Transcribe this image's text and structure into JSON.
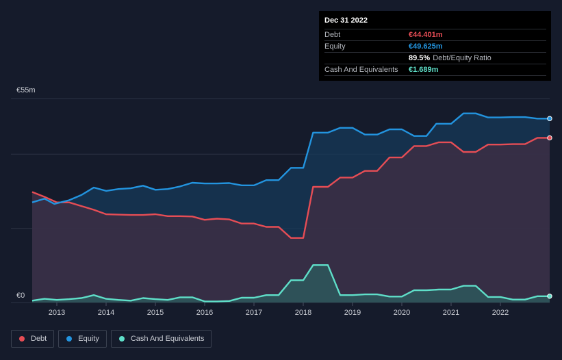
{
  "chart_data": {
    "type": "area",
    "y_label_top": "€55m",
    "y_label_bottom": "€0",
    "ylim": [
      0,
      55
    ],
    "xlim": [
      2012.5,
      2023.0
    ],
    "x_ticks": [
      {
        "value": 2013,
        "label": "2013"
      },
      {
        "value": 2014,
        "label": "2014"
      },
      {
        "value": 2015,
        "label": "2015"
      },
      {
        "value": 2016,
        "label": "2016"
      },
      {
        "value": 2017,
        "label": "2017"
      },
      {
        "value": 2018,
        "label": "2018"
      },
      {
        "value": 2019,
        "label": "2019"
      },
      {
        "value": 2020,
        "label": "2020"
      },
      {
        "value": 2021,
        "label": "2021"
      },
      {
        "value": 2022,
        "label": "2022"
      }
    ],
    "series": [
      {
        "name": "Equity",
        "key": "equity",
        "color": "#2394df",
        "points": [
          [
            2012.5,
            27.0
          ],
          [
            2012.75,
            28.0
          ],
          [
            2012.95,
            26.6
          ],
          [
            2013.25,
            27.6
          ],
          [
            2013.5,
            29.0
          ],
          [
            2013.75,
            31.0
          ],
          [
            2014.0,
            30.1
          ],
          [
            2014.25,
            30.6
          ],
          [
            2014.5,
            30.8
          ],
          [
            2014.75,
            31.5
          ],
          [
            2015.0,
            30.4
          ],
          [
            2015.25,
            30.6
          ],
          [
            2015.5,
            31.3
          ],
          [
            2015.75,
            32.3
          ],
          [
            2016.0,
            32.1
          ],
          [
            2016.25,
            32.1
          ],
          [
            2016.5,
            32.2
          ],
          [
            2016.75,
            31.6
          ],
          [
            2017.0,
            31.6
          ],
          [
            2017.25,
            33.0
          ],
          [
            2017.5,
            33.0
          ],
          [
            2017.75,
            36.3
          ],
          [
            2018.0,
            36.3
          ],
          [
            2018.2,
            45.8
          ],
          [
            2018.5,
            45.8
          ],
          [
            2018.75,
            47.1
          ],
          [
            2019.0,
            47.1
          ],
          [
            2019.25,
            45.3
          ],
          [
            2019.5,
            45.3
          ],
          [
            2019.75,
            46.7
          ],
          [
            2020.0,
            46.7
          ],
          [
            2020.25,
            44.9
          ],
          [
            2020.5,
            44.9
          ],
          [
            2020.7,
            48.2
          ],
          [
            2021.0,
            48.2
          ],
          [
            2021.25,
            51.0
          ],
          [
            2021.5,
            51.0
          ],
          [
            2021.75,
            49.9
          ],
          [
            2022.0,
            49.9
          ],
          [
            2022.25,
            50.0
          ],
          [
            2022.5,
            50.0
          ],
          [
            2022.75,
            49.6
          ],
          [
            2023.0,
            49.6
          ]
        ]
      },
      {
        "name": "Debt",
        "key": "debt",
        "color": "#e64d55",
        "points": [
          [
            2012.5,
            29.8
          ],
          [
            2012.75,
            28.5
          ],
          [
            2013.0,
            27.0
          ],
          [
            2013.25,
            27.0
          ],
          [
            2013.5,
            26.0
          ],
          [
            2013.75,
            25.0
          ],
          [
            2014.0,
            23.8
          ],
          [
            2014.25,
            23.7
          ],
          [
            2014.5,
            23.6
          ],
          [
            2014.75,
            23.6
          ],
          [
            2015.0,
            23.8
          ],
          [
            2015.25,
            23.3
          ],
          [
            2015.5,
            23.3
          ],
          [
            2015.75,
            23.2
          ],
          [
            2016.0,
            22.3
          ],
          [
            2016.25,
            22.6
          ],
          [
            2016.5,
            22.4
          ],
          [
            2016.75,
            21.3
          ],
          [
            2017.0,
            21.3
          ],
          [
            2017.25,
            20.4
          ],
          [
            2017.5,
            20.4
          ],
          [
            2017.75,
            17.4
          ],
          [
            2018.0,
            17.4
          ],
          [
            2018.2,
            31.2
          ],
          [
            2018.5,
            31.2
          ],
          [
            2018.75,
            33.7
          ],
          [
            2019.0,
            33.7
          ],
          [
            2019.25,
            35.5
          ],
          [
            2019.5,
            35.5
          ],
          [
            2019.75,
            39.1
          ],
          [
            2020.0,
            39.1
          ],
          [
            2020.25,
            42.2
          ],
          [
            2020.5,
            42.2
          ],
          [
            2020.75,
            43.2
          ],
          [
            2021.0,
            43.2
          ],
          [
            2021.25,
            40.6
          ],
          [
            2021.5,
            40.6
          ],
          [
            2021.75,
            42.6
          ],
          [
            2022.0,
            42.6
          ],
          [
            2022.25,
            42.7
          ],
          [
            2022.5,
            42.7
          ],
          [
            2022.75,
            44.4
          ],
          [
            2023.0,
            44.4
          ]
        ]
      },
      {
        "name": "Cash And Equivalents",
        "key": "cash",
        "color": "#5fdfc9",
        "points": [
          [
            2012.5,
            0.5
          ],
          [
            2012.75,
            1.0
          ],
          [
            2013.0,
            0.7
          ],
          [
            2013.25,
            0.9
          ],
          [
            2013.5,
            1.2
          ],
          [
            2013.75,
            2.0
          ],
          [
            2014.0,
            1.0
          ],
          [
            2014.25,
            0.7
          ],
          [
            2014.5,
            0.5
          ],
          [
            2014.75,
            1.2
          ],
          [
            2015.0,
            0.9
          ],
          [
            2015.25,
            0.7
          ],
          [
            2015.5,
            1.4
          ],
          [
            2015.75,
            1.4
          ],
          [
            2016.0,
            0.3
          ],
          [
            2016.25,
            0.3
          ],
          [
            2016.5,
            0.4
          ],
          [
            2016.75,
            1.3
          ],
          [
            2017.0,
            1.3
          ],
          [
            2017.25,
            2.0
          ],
          [
            2017.5,
            2.0
          ],
          [
            2017.75,
            6.0
          ],
          [
            2018.0,
            6.0
          ],
          [
            2018.2,
            10.1
          ],
          [
            2018.5,
            10.1
          ],
          [
            2018.75,
            2.0
          ],
          [
            2019.0,
            2.0
          ],
          [
            2019.25,
            2.2
          ],
          [
            2019.5,
            2.2
          ],
          [
            2019.75,
            1.6
          ],
          [
            2020.0,
            1.6
          ],
          [
            2020.25,
            3.3
          ],
          [
            2020.5,
            3.3
          ],
          [
            2020.75,
            3.5
          ],
          [
            2021.0,
            3.5
          ],
          [
            2021.25,
            4.5
          ],
          [
            2021.5,
            4.5
          ],
          [
            2021.75,
            1.5
          ],
          [
            2022.0,
            1.5
          ],
          [
            2022.25,
            0.8
          ],
          [
            2022.5,
            0.8
          ],
          [
            2022.75,
            1.7
          ],
          [
            2023.0,
            1.7
          ]
        ]
      }
    ]
  },
  "tooltip": {
    "date": "Dec 31 2022",
    "rows": [
      {
        "label": "Debt",
        "value": "€44.401m",
        "extra": "",
        "color": "#e64d55"
      },
      {
        "label": "Equity",
        "value": "€49.625m",
        "extra": "",
        "color": "#2394df"
      },
      {
        "label": "",
        "value": "89.5%",
        "extra": "Debt/Equity Ratio",
        "color": "#ffffff"
      },
      {
        "label": "Cash And Equivalents",
        "value": "€1.689m",
        "extra": "",
        "color": "#5fdfc9"
      }
    ]
  },
  "legend": [
    {
      "label": "Debt",
      "color": "#e64d55"
    },
    {
      "label": "Equity",
      "color": "#2394df"
    },
    {
      "label": "Cash And Equivalents",
      "color": "#5fdfc9"
    }
  ]
}
